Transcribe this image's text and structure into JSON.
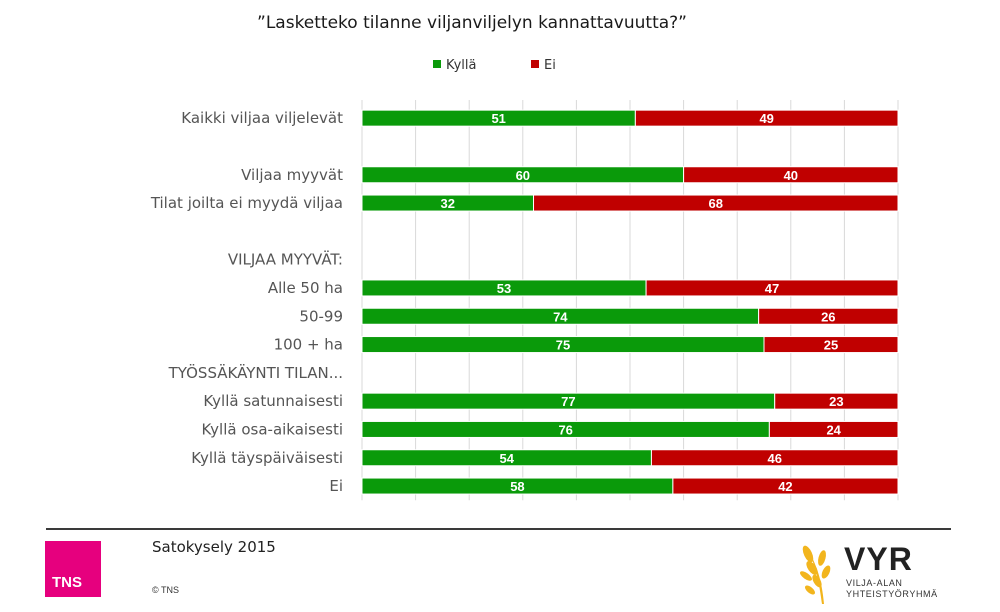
{
  "chart_data": {
    "type": "bar",
    "stacked": true,
    "orientation": "horizontal",
    "title": "”Lasketteko tilanne viljanviljelyn kannattavuutta?”",
    "legend": {
      "position": "top",
      "entries": [
        "Kyllä",
        "Ei"
      ]
    },
    "xlim": [
      0,
      100
    ],
    "grid": true,
    "categories": [
      "Kaikki viljaa viljelevät",
      "",
      "Viljaa myyvät",
      "Tilat joilta ei myydä viljaa",
      "",
      "VILJAA MYYVÄT:",
      "Alle 50 ha",
      "50-99",
      "100 + ha",
      "TYÖSSÄKÄYNTI TILAN...",
      "Kyllä satunnaisesti",
      "Kyllä osa-aikaisesti",
      "Kyllä täyspäiväisesti",
      "Ei"
    ],
    "series": [
      {
        "name": "Kyllä",
        "color": "#0a9a0a",
        "values": [
          51,
          null,
          60,
          32,
          null,
          null,
          53,
          74,
          75,
          null,
          77,
          76,
          54,
          58
        ]
      },
      {
        "name": "Ei",
        "color": "#c00000",
        "values": [
          49,
          null,
          40,
          68,
          null,
          null,
          47,
          26,
          25,
          null,
          23,
          24,
          46,
          42
        ]
      }
    ]
  },
  "footer": {
    "survey": "Satokysely 2015",
    "copyright": "© TNS",
    "tns_logo": "TNS",
    "tns_color": "#e6007e",
    "vyr_brand": "VYR",
    "vyr_line1": "VILJA-ALAN",
    "vyr_line2": "YHTEISTYÖRYHMÄ",
    "vyr_icon": "wheat-icon"
  }
}
